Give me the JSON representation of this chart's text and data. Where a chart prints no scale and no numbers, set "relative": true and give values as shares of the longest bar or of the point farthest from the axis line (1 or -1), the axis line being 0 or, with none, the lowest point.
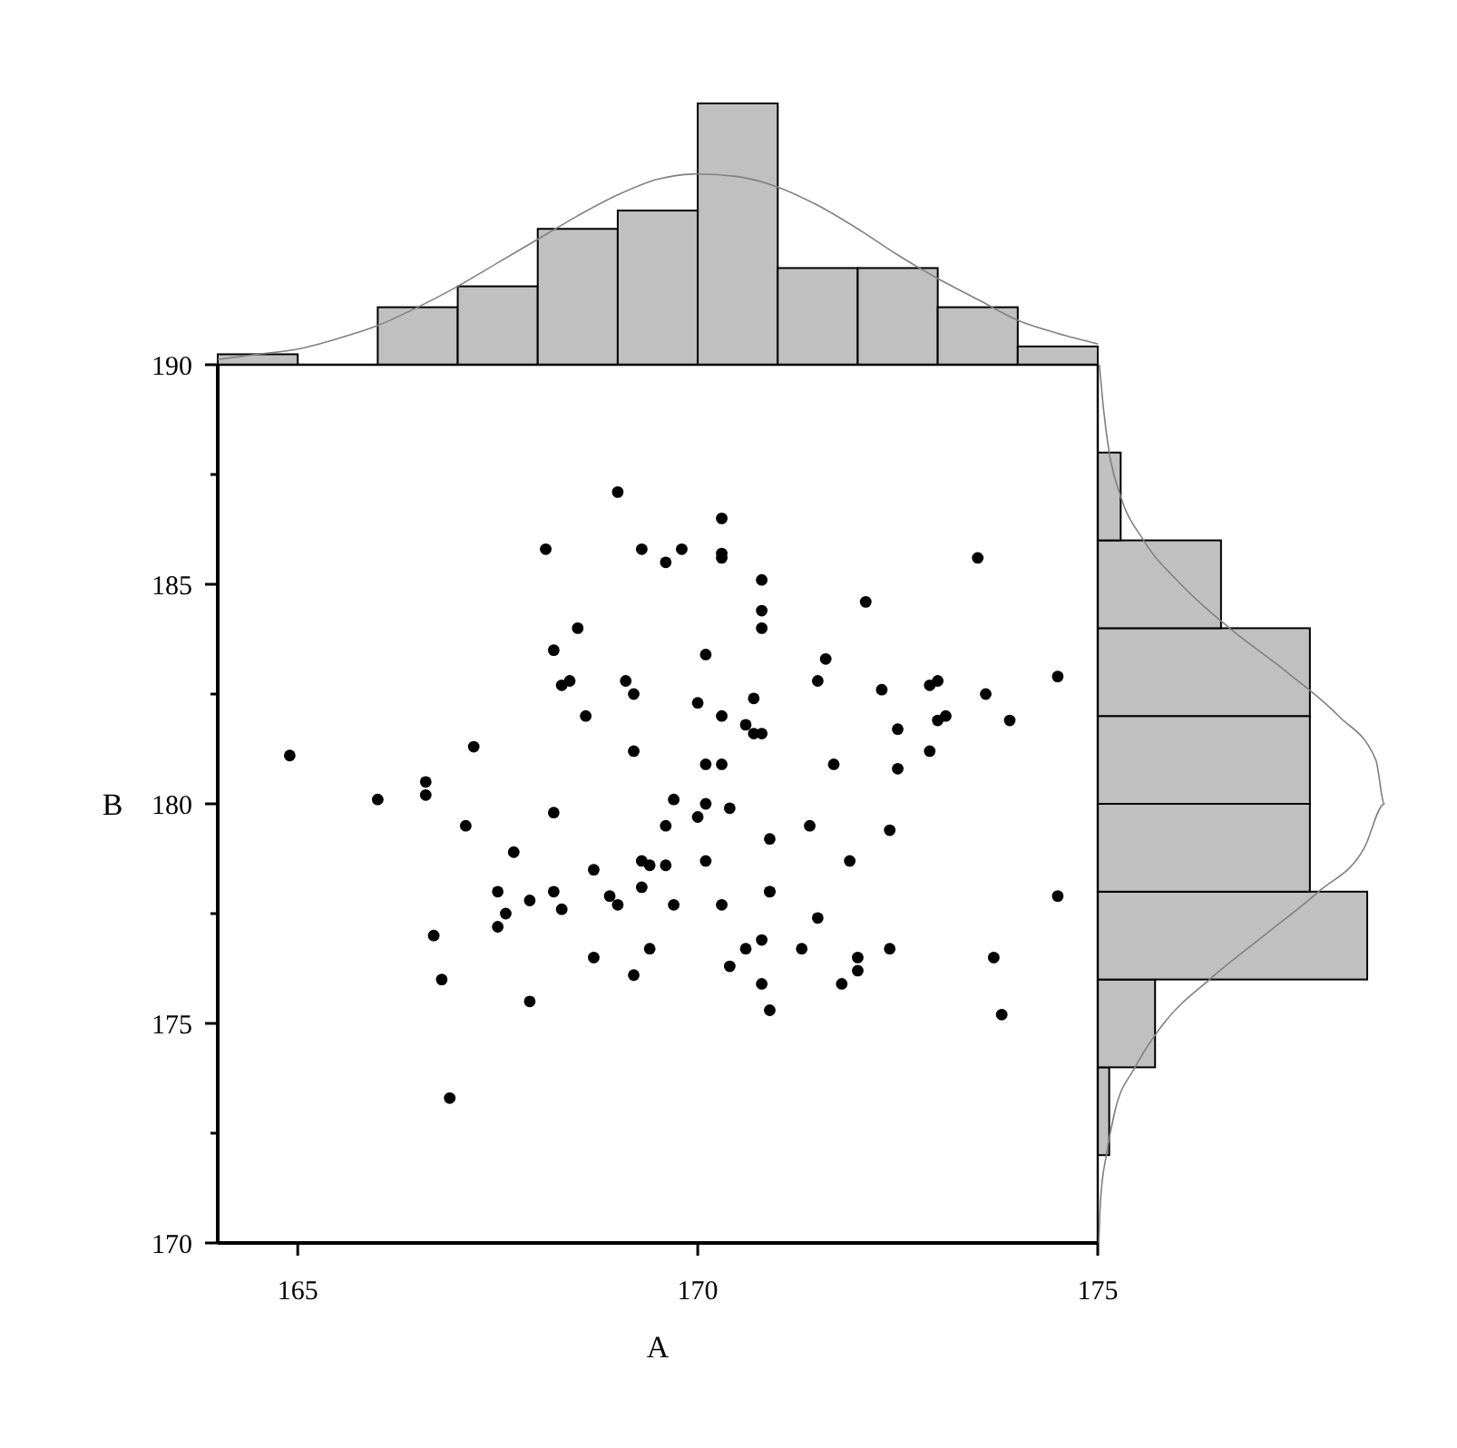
{
  "chart_data": [
    {
      "type": "histogram",
      "bins": [
        164,
        165,
        166,
        167,
        168,
        169,
        170,
        171,
        172,
        173,
        174,
        175
      ],
      "values": [
        0.04,
        0,
        0.22,
        0.3,
        0.52,
        0.59,
        1,
        0.37,
        0.37,
        0.22,
        0.07
      ],
      "color": "#c0c0c0",
      "relative": true,
      "xlim": [
        164,
        175
      ],
      "tick_labels": false,
      "series": [
        {
          "type": "line",
          "color": "#808080",
          "x": [
            164,
            164.5,
            165,
            165.5,
            166,
            166.5,
            167,
            167.5,
            168,
            168.5,
            169,
            169.5,
            170,
            170.5,
            171,
            171.5,
            172,
            172.5,
            173,
            173.5,
            174,
            174.5,
            175
          ],
          "values": [
            0.02,
            0.04,
            0.06,
            0.1,
            0.15,
            0.22,
            0.3,
            0.39,
            0.48,
            0.57,
            0.65,
            0.71,
            0.73,
            0.72,
            0.68,
            0.61,
            0.52,
            0.42,
            0.33,
            0.25,
            0.17,
            0.12,
            0.08
          ]
        }
      ]
    },
    {
      "type": "scatter",
      "xlabel": "A",
      "ylabel": "B",
      "xlim": [
        164,
        175
      ],
      "ylim": [
        170,
        190
      ],
      "xticks": [
        165,
        170,
        175
      ],
      "yticks": [
        170,
        {
          "value": 172.5,
          "label": null
        },
        175,
        {
          "value": 177.5,
          "label": null
        },
        180,
        {
          "value": 182.5,
          "label": null
        },
        185,
        {
          "value": 187.5,
          "label": null
        },
        190
      ],
      "marker": "circle",
      "series": [
        {
          "color": "#000000",
          "x": [
            169.0,
            168.1,
            169.3,
            169.6,
            168.5,
            168.2,
            168.3,
            168.4,
            169.1,
            169.2,
            168.6,
            164.9,
            167.2,
            169.2,
            166.6,
            166.6,
            166.0,
            169.7,
            167.1,
            168.2,
            169.6,
            167.7,
            170.3,
            169.8,
            170.3,
            170.3,
            173.5,
            170.8,
            172.1,
            170.8,
            170.8,
            170.1,
            171.6,
            171.5,
            174.5,
            170.0,
            170.7,
            172.3,
            172.9,
            173.0,
            173.6,
            170.3,
            170.6,
            170.7,
            170.8,
            172.5,
            173.0,
            173.1,
            173.9,
            172.9,
            170.1,
            170.3,
            171.7,
            172.5,
            170.1,
            170.0,
            170.4,
            170.9,
            171.4,
            172.4,
            168.7,
            169.3,
            169.4,
            169.6,
            167.5,
            167.9,
            168.2,
            168.3,
            167.6,
            167.5,
            168.9,
            169.0,
            169.3,
            169.7,
            166.7,
            166.8,
            168.7,
            169.4,
            169.2,
            167.9,
            166.9,
            171.9,
            170.1,
            174.5,
            170.9,
            170.9,
            170.3,
            171.5,
            170.6,
            170.8,
            170.4,
            171.3,
            172.0,
            172.0,
            172.4,
            171.8,
            170.8,
            173.7,
            170.9,
            173.8
          ],
          "values": [
            187.1,
            185.8,
            185.8,
            185.5,
            184.0,
            183.5,
            182.7,
            182.8,
            182.8,
            182.5,
            182.0,
            181.1,
            181.3,
            181.2,
            180.5,
            180.2,
            180.1,
            180.1,
            179.5,
            179.8,
            179.5,
            178.9,
            186.5,
            185.8,
            185.7,
            185.6,
            185.6,
            185.1,
            184.6,
            184.4,
            184.0,
            183.4,
            183.3,
            182.8,
            182.9,
            182.3,
            182.4,
            182.6,
            182.7,
            182.8,
            182.5,
            182.0,
            181.8,
            181.6,
            181.6,
            181.7,
            181.9,
            182.0,
            181.9,
            181.2,
            180.9,
            180.9,
            180.9,
            180.8,
            180.0,
            179.7,
            179.9,
            179.2,
            179.5,
            179.4,
            178.5,
            178.7,
            178.6,
            178.6,
            178.0,
            177.8,
            178.0,
            177.6,
            177.5,
            177.2,
            177.9,
            177.7,
            178.1,
            177.7,
            177.0,
            176.0,
            176.5,
            176.7,
            176.1,
            175.5,
            173.3,
            178.7,
            178.7,
            177.9,
            178.0,
            178.0,
            177.7,
            177.4,
            176.7,
            176.9,
            176.3,
            176.7,
            176.5,
            176.2,
            176.7,
            175.9,
            175.9,
            176.5,
            175.3,
            175.2
          ]
        }
      ]
    },
    {
      "type": "histogram",
      "orientation": "horizontal",
      "bins": [
        172,
        174,
        176,
        178,
        180,
        182,
        184,
        186,
        188
      ],
      "values": [
        0.04,
        0.2,
        0.94,
        0.74,
        0.74,
        0.74,
        0.43,
        0.08
      ],
      "color": "#c0c0c0",
      "relative": true,
      "ylim": [
        170,
        190
      ],
      "tick_labels": false,
      "series": [
        {
          "type": "line",
          "color": "#808080",
          "x": [
            170,
            171,
            172,
            173,
            174,
            175,
            176,
            177,
            178,
            179,
            180,
            181,
            182,
            183,
            184,
            185,
            186,
            187,
            188,
            189,
            190
          ],
          "values": [
            0.004,
            0.01,
            0.03,
            0.06,
            0.13,
            0.23,
            0.39,
            0.58,
            0.77,
            0.93,
            1,
            0.97,
            0.84,
            0.66,
            0.46,
            0.29,
            0.16,
            0.08,
            0.04,
            0.02,
            0.006
          ]
        }
      ]
    }
  ]
}
